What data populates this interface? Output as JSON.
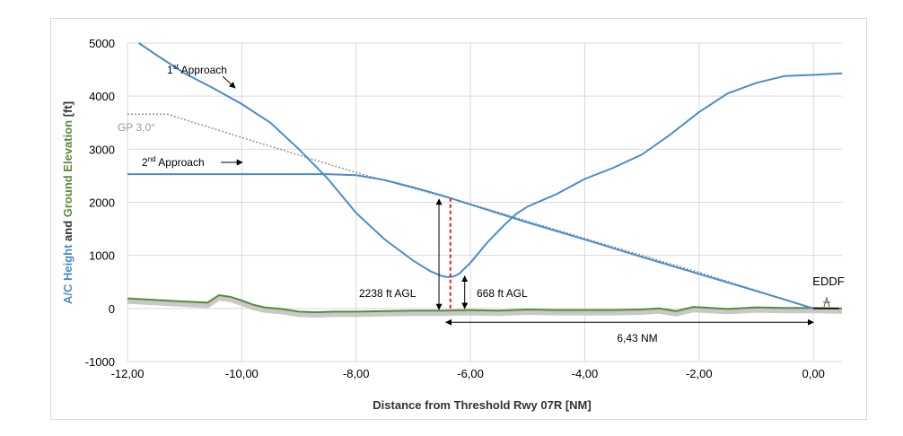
{
  "chart_data": {
    "type": "line",
    "xlabel": "Distance from Threshold Rwy 07R [NM]",
    "ylabel": {
      "part1": "A/C Height",
      "part2": " and ",
      "part3": "Ground Elevation",
      "part4": " [ft]"
    },
    "xlim": [
      -12,
      0.5
    ],
    "ylim": [
      -1000,
      5000
    ],
    "x_ticks": [
      -12,
      -10,
      -8,
      -6,
      -4,
      -2,
      0
    ],
    "x_tick_labels": [
      "-12,00",
      "-10,00",
      "-8,00",
      "-6,00",
      "-4,00",
      "-2,00",
      "0,00"
    ],
    "y_ticks": [
      -1000,
      0,
      1000,
      2000,
      3000,
      4000,
      5000
    ],
    "y_tick_labels": [
      "-1000",
      "0",
      "1000",
      "2000",
      "3000",
      "4000",
      "5000"
    ],
    "grid": true,
    "colors": {
      "approach": "#4a8ccc",
      "ground": "#5a8a3c",
      "ground_shadow": "#c8c8c8",
      "glidepath": "#999999",
      "marker": "#e02020",
      "axis_text": "#000000"
    },
    "series": [
      {
        "name": "1st Approach",
        "x": [
          -11.8,
          -11.5,
          -11.0,
          -10.5,
          -10.0,
          -9.5,
          -9.0,
          -8.5,
          -8.0,
          -7.5,
          -7.0,
          -6.7,
          -6.5,
          -6.4,
          -6.3,
          -6.2,
          -6.0,
          -5.7,
          -5.4,
          -5.2,
          -5.0,
          -4.5,
          -4.0,
          -3.5,
          -3.0,
          -2.5,
          -2.0,
          -1.5,
          -1.0,
          -0.5,
          0.0,
          0.5
        ],
        "y": [
          5000,
          4780,
          4430,
          4150,
          3850,
          3500,
          3000,
          2450,
          1800,
          1300,
          900,
          700,
          610,
          590,
          600,
          650,
          860,
          1250,
          1580,
          1780,
          1920,
          2150,
          2440,
          2650,
          2900,
          3280,
          3700,
          4050,
          4250,
          4380,
          4400,
          4430
        ]
      },
      {
        "name": "2nd Approach",
        "x": [
          -12.0,
          -10.0,
          -8.5,
          -8.0,
          -7.5,
          -7.0,
          -6.5,
          -6.0,
          -5.0,
          -4.0,
          -3.0,
          -2.0,
          -1.0,
          0.0
        ],
        "y": [
          2530,
          2530,
          2530,
          2510,
          2420,
          2280,
          2130,
          1960,
          1620,
          1300,
          970,
          650,
          330,
          0
        ]
      },
      {
        "name": "GP 3,0°",
        "x": [
          -12.0,
          -11.3,
          -10.0,
          -8.0,
          -6.0,
          -4.0,
          -2.0,
          0.0
        ],
        "y": [
          3660,
          3660,
          3220,
          2560,
          1970,
          1320,
          680,
          0
        ]
      },
      {
        "name": "Ground Elevation",
        "x": [
          -12.0,
          -11.5,
          -11.0,
          -10.6,
          -10.4,
          -10.2,
          -10.0,
          -9.8,
          -9.6,
          -9.3,
          -9.0,
          -8.7,
          -8.4,
          -8.0,
          -7.5,
          -7.0,
          -6.5,
          -6.0,
          -5.5,
          -5.0,
          -4.5,
          -4.0,
          -3.5,
          -3.0,
          -2.7,
          -2.4,
          -2.1,
          -1.8,
          -1.5,
          -1.0,
          -0.5,
          0.0,
          0.5
        ],
        "y": [
          190,
          160,
          130,
          110,
          250,
          220,
          150,
          70,
          20,
          -10,
          -60,
          -70,
          -60,
          -60,
          -50,
          -40,
          -40,
          -30,
          -40,
          -20,
          -30,
          -30,
          -30,
          -20,
          0,
          -50,
          30,
          10,
          -10,
          20,
          10,
          10,
          0
        ]
      }
    ],
    "annotations": {
      "first_approach": {
        "prefix": "1",
        "sup": "st",
        "suffix": " Approach"
      },
      "second_approach": {
        "prefix": "2",
        "sup": "nd",
        "suffix": " Approach"
      },
      "glidepath": "GP 3,0°",
      "agl_2238": "2238 ft AGL",
      "agl_668": "668 ft AGL",
      "distance": "6,43 NM",
      "airport": "EDDF",
      "marker_x": -6.35,
      "marker_y_top": 2080,
      "marker_y_bottom": 0,
      "arrow_2238_x": -6.55,
      "arrow_2238_from": -20,
      "arrow_2238_to": 2060,
      "arrow_668_x": -6.1,
      "arrow_668_from": 0,
      "arrow_668_to": 610,
      "distance_from": -6.43,
      "distance_to": 0,
      "distance_y": -260
    }
  }
}
